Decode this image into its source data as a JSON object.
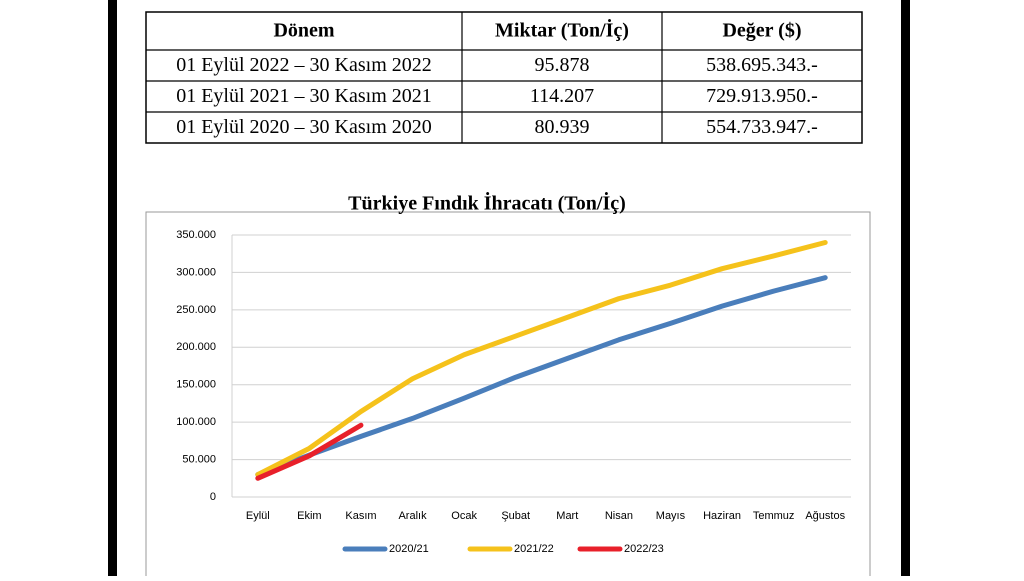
{
  "table": {
    "header": [
      "Dönem",
      "Miktar (Ton/İç)",
      "Değer ($)"
    ],
    "rows": [
      [
        "01 Eylül 2022 – 30 Kasım 2022",
        "95.878",
        "538.695.343.-"
      ],
      [
        "01 Eylül 2021 – 30 Kasım 2021",
        "114.207",
        "729.913.950.-"
      ],
      [
        "01 Eylül 2020 – 30 Kasım 2020",
        "80.939",
        "554.733.947.-"
      ]
    ]
  },
  "chart_data": {
    "type": "line",
    "title": "Türkiye Fındık İhracatı (Ton/İç)",
    "categories": [
      "Eylül",
      "Ekim",
      "Kasım",
      "Aralık",
      "Ocak",
      "Şubat",
      "Mart",
      "Nisan",
      "Mayıs",
      "Haziran",
      "Temmuz",
      "Ağustos"
    ],
    "series": [
      {
        "name": "2020/21",
        "color": "#4a7ebb",
        "values": [
          30000,
          56000,
          80939,
          105000,
          132000,
          160000,
          185000,
          210000,
          232000,
          255000,
          275000,
          293000
        ]
      },
      {
        "name": "2021/22",
        "color": "#f5c21b",
        "values": [
          30000,
          65000,
          114207,
          158000,
          190000,
          215000,
          240000,
          265000,
          283000,
          305000,
          322000,
          340000
        ]
      },
      {
        "name": "2022/23",
        "color": "#e8202a",
        "values": [
          25000,
          55000,
          95878,
          null,
          null,
          null,
          null,
          null,
          null,
          null,
          null,
          null
        ]
      }
    ],
    "ylim": [
      0,
      350000
    ],
    "yticks": [
      0,
      {
        "value": 50000,
        "label": "50.000"
      },
      {
        "value": 100000,
        "label": "100.000"
      },
      {
        "value": 150000,
        "label": "150.000"
      },
      {
        "value": 200000,
        "label": "200.000"
      },
      {
        "value": 250000,
        "label": "250.000"
      },
      {
        "value": 300000,
        "label": "300.000"
      },
      {
        "value": 350000,
        "label": "350.000"
      }
    ],
    "grid": true
  }
}
